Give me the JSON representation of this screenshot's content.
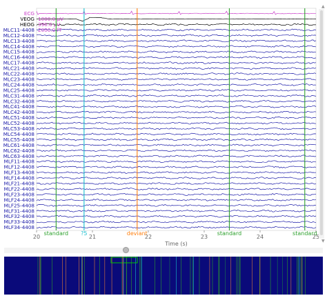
{
  "channels": [
    "ECG",
    "VEOG",
    "HEOG",
    "MLC11-4408",
    "MLC12-4408",
    "MLC13-4408",
    "MLC14-4408",
    "MLC15-4408",
    "MLC16-4408",
    "MLC17-4408",
    "MLC21-4408",
    "MLC22-4408",
    "MLC23-4408",
    "MLC24-4408",
    "MLC25-4408",
    "MLC31-4408",
    "MLC32-4408",
    "MLC41-4408",
    "MLC42-4408",
    "MLC51-4408",
    "MLC52-4408",
    "MLC53-4408",
    "MLC54-4408",
    "MLC55-4408",
    "MLC61-4408",
    "MLC62-4408",
    "MLC63-4408",
    "MLF11-4408",
    "MLF12-4408",
    "MLF13-4408",
    "MLF14-4408",
    "MLF21-4408",
    "MLF22-4408",
    "MLF23-4408",
    "MLF24-4408",
    "MLF25-4408",
    "MLF31-4408",
    "MLF32-4408",
    "MLF33-4408",
    "MLF34-4408"
  ],
  "channel_colors": {
    "ECG": "#c83ac8",
    "EOG": "#000000",
    "MEG": "#1a1aa8"
  },
  "scale_labels": [
    "1000.0 µV",
    "390.0 µV",
    "2000.0 fT"
  ],
  "time_axis": {
    "label": "Time (s)",
    "ticks": [
      "20",
      "21",
      "22",
      "23",
      "24",
      "25"
    ]
  },
  "events": [
    {
      "time": 20.35,
      "label": "standard",
      "color": "#2ca02c"
    },
    {
      "time": 20.85,
      "label": "?5",
      "color": "#17becf"
    },
    {
      "time": 21.8,
      "label": "deviant",
      "color": "#ff7f0e"
    },
    {
      "time": 23.45,
      "label": "standard",
      "color": "#2ca02c"
    },
    {
      "time": 24.8,
      "label": "standard",
      "color": "#2ca02c"
    }
  ],
  "overview": {
    "background": "#0a0a7a",
    "window_color": "#00c800"
  },
  "icons": [
    "scroll-up-arrow-icon",
    "scroll-down-arrow-icon",
    "horizontal-scroll-knob-icon"
  ]
}
